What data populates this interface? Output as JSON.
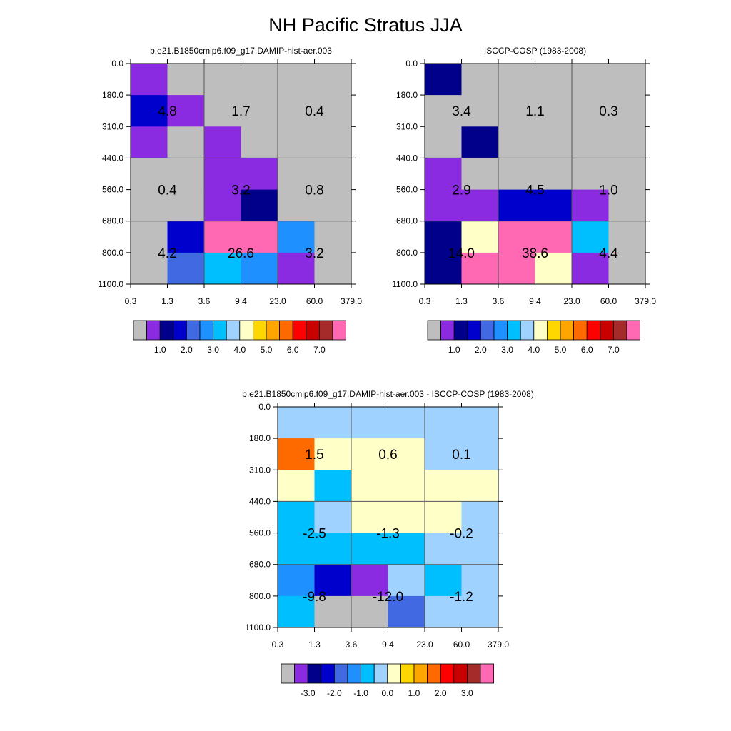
{
  "figure": {
    "title": "NH Pacific Stratus JJA"
  },
  "chart_data": [
    {
      "type": "heatmap",
      "title": "b.e21.B1850cmip6.f09_g17.DAMIP-hist-aer.003",
      "x_ticks": [
        "0.3",
        "1.3",
        "3.6",
        "9.4",
        "23.0",
        "60.0",
        "379.0"
      ],
      "y_ticks": [
        "0.0",
        "180.0",
        "310.0",
        "440.0",
        "560.0",
        "680.0",
        "800.0",
        "1100.0"
      ],
      "grid": [
        [
          "purple",
          "gray",
          "gray",
          "gray",
          "gray",
          "gray"
        ],
        [
          "mediumblue",
          "purple",
          "gray",
          "gray",
          "gray",
          "gray"
        ],
        [
          "purple",
          "gray",
          "purple",
          "gray",
          "gray",
          "gray"
        ],
        [
          "gray",
          "gray",
          "purple",
          "purple",
          "gray",
          "gray"
        ],
        [
          "gray",
          "gray",
          "purple",
          "navy",
          "gray",
          "gray"
        ],
        [
          "gray",
          "mediumblue",
          "hotpink",
          "hotpink",
          "dodgerblue",
          "gray"
        ],
        [
          "gray",
          "royalblue",
          "deepskyblue",
          "dodgerblue",
          "purple",
          "gray"
        ]
      ],
      "box_labels": [
        [
          "4.8",
          "1.7",
          "0.4"
        ],
        [
          "0.4",
          "3.2",
          "0.8"
        ],
        [
          "4.2",
          "26.6",
          "3.2"
        ]
      ],
      "colorbar": {
        "labels": [
          "1.0",
          "2.0",
          "3.0",
          "4.0",
          "5.0",
          "6.0",
          "7.0"
        ]
      }
    },
    {
      "type": "heatmap",
      "title": "ISCCP-COSP (1983-2008)",
      "x_ticks": [
        "0.3",
        "1.3",
        "3.6",
        "9.4",
        "23.0",
        "60.0",
        "379.0"
      ],
      "y_ticks": [
        "0.0",
        "180.0",
        "310.0",
        "440.0",
        "560.0",
        "680.0",
        "800.0",
        "1100.0"
      ],
      "grid": [
        [
          "navy",
          "gray",
          "gray",
          "gray",
          "gray",
          "gray"
        ],
        [
          "gray",
          "gray",
          "gray",
          "gray",
          "gray",
          "gray"
        ],
        [
          "gray",
          "navy",
          "gray",
          "gray",
          "gray",
          "gray"
        ],
        [
          "purple",
          "gray",
          "gray",
          "gray",
          "gray",
          "gray"
        ],
        [
          "purple",
          "purple",
          "mediumblue",
          "mediumblue",
          "purple",
          "gray"
        ],
        [
          "navy",
          "lightyellow",
          "hotpink",
          "hotpink",
          "deepskyblue",
          "gray"
        ],
        [
          "navy",
          "hotpink",
          "hotpink",
          "lightyellow",
          "purple",
          "gray"
        ]
      ],
      "box_labels": [
        [
          "3.4",
          "1.1",
          "0.3"
        ],
        [
          "2.9",
          "4.5",
          "1.0"
        ],
        [
          "14.0",
          "38.6",
          "4.4"
        ]
      ],
      "colorbar": {
        "labels": [
          "1.0",
          "2.0",
          "3.0",
          "4.0",
          "5.0",
          "6.0",
          "7.0"
        ]
      }
    },
    {
      "type": "heatmap",
      "title": "b.e21.B1850cmip6.f09_g17.DAMIP-hist-aer.003 - ISCCP-COSP (1983-2008)",
      "x_ticks": [
        "0.3",
        "1.3",
        "3.6",
        "9.4",
        "23.0",
        "60.0",
        "379.0"
      ],
      "y_ticks": [
        "0.0",
        "180.0",
        "310.0",
        "440.0",
        "560.0",
        "680.0",
        "800.0",
        "1100.0"
      ],
      "grid": [
        [
          "lightskyblue",
          "lightskyblue",
          "lightskyblue",
          "lightskyblue",
          "lightskyblue",
          "lightskyblue"
        ],
        [
          "orangered",
          "lightyellow",
          "lightyellow",
          "lightyellow",
          "lightskyblue",
          "lightskyblue"
        ],
        [
          "lightyellow",
          "deepskyblue",
          "lightyellow",
          "lightyellow",
          "lightyellow",
          "lightyellow"
        ],
        [
          "deepskyblue",
          "lightskyblue",
          "lightyellow",
          "lightyellow",
          "lightyellow",
          "lightskyblue"
        ],
        [
          "deepskyblue",
          "deepskyblue",
          "deepskyblue",
          "deepskyblue",
          "lightskyblue",
          "lightskyblue"
        ],
        [
          "dodgerblue",
          "mediumblue",
          "purple",
          "lightskyblue",
          "deepskyblue",
          "lightskyblue"
        ],
        [
          "deepskyblue",
          "gray",
          "gray",
          "royalblue",
          "lightskyblue",
          "lightskyblue"
        ]
      ],
      "box_labels": [
        [
          "1.5",
          "0.6",
          "0.1"
        ],
        [
          "-2.5",
          "-1.3",
          "-0.2"
        ],
        [
          "-9.8",
          "-12.0",
          "-1.2"
        ]
      ],
      "colorbar": {
        "labels": [
          "-3.0",
          "-2.0",
          "-1.0",
          "0.0",
          "1.0",
          "2.0",
          "3.0"
        ]
      }
    }
  ],
  "palette": {
    "gray": "#bebebe",
    "purple": "#8a2be2",
    "navy": "#00008b",
    "mediumblue": "#0000cd",
    "royalblue": "#4169e1",
    "dodgerblue": "#1e90ff",
    "deepskyblue": "#00bfff",
    "lightskyblue": "#a0d2ff",
    "lightyellow": "#ffffc8",
    "gold": "#ffd700",
    "orange": "#ffa500",
    "orangered": "#ff6a00",
    "red": "#ff0000",
    "crimson": "#c80000",
    "darkred": "#a52a2a",
    "hotpink": "#ff69b4"
  },
  "colorbar_swatches": [
    "gray",
    "purple",
    "navy",
    "mediumblue",
    "royalblue",
    "dodgerblue",
    "deepskyblue",
    "lightskyblue",
    "lightyellow",
    "gold",
    "orange",
    "orangered",
    "red",
    "crimson",
    "darkred",
    "hotpink"
  ]
}
